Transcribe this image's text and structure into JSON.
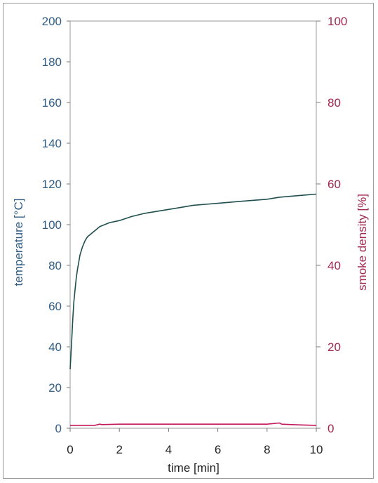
{
  "chart_data": {
    "type": "line",
    "title": "",
    "xlabel": "time [min]",
    "ylabel": "temperature [°C]",
    "y2label": "smoke density [%]",
    "xlim": [
      0,
      10
    ],
    "ylim": [
      0,
      200
    ],
    "y2lim": [
      0,
      100
    ],
    "x_ticks": [
      "0",
      "2",
      "4",
      "6",
      "8",
      "10"
    ],
    "y_ticks": [
      "0",
      "20",
      "40",
      "60",
      "80",
      "100",
      "120",
      "140",
      "160",
      "180",
      "200"
    ],
    "y2_ticks": [
      "0",
      "20",
      "40",
      "60",
      "80",
      "100"
    ],
    "grid": false,
    "colors": {
      "temperature": "#1f4e4f",
      "smoke": "#c2185b",
      "left_axis": "#2f5d86",
      "right_axis": "#a0284f"
    },
    "series": [
      {
        "axis": "left",
        "x": [
          0,
          0.05,
          0.1,
          0.15,
          0.2,
          0.25,
          0.3,
          0.4,
          0.5,
          0.6,
          0.7,
          0.8,
          0.9,
          1.0,
          1.2,
          1.4,
          1.6,
          1.8,
          2.0,
          2.5,
          3.0,
          3.5,
          4.0,
          4.5,
          5.0,
          5.5,
          6.0,
          6.5,
          7.0,
          7.5,
          8.0,
          8.5,
          9.0,
          9.5,
          10.0
        ],
        "y": [
          29,
          40,
          52,
          62,
          68,
          74,
          78,
          85,
          89,
          92,
          94,
          95,
          96,
          97,
          99,
          100,
          101,
          101.5,
          102,
          104,
          105.5,
          106.5,
          107.5,
          108.5,
          109.5,
          110,
          110.5,
          111,
          111.5,
          112,
          112.5,
          113.5,
          114,
          114.5,
          115
        ]
      },
      {
        "axis": "right",
        "x": [
          0,
          1.0,
          1.2,
          1.3,
          2,
          4,
          6,
          8,
          8.5,
          8.6,
          9,
          9.5,
          10
        ],
        "y": [
          0.7,
          0.7,
          1.0,
          0.9,
          1.0,
          1.0,
          1.0,
          1.0,
          1.3,
          1.0,
          0.9,
          0.8,
          0.7
        ]
      }
    ]
  }
}
